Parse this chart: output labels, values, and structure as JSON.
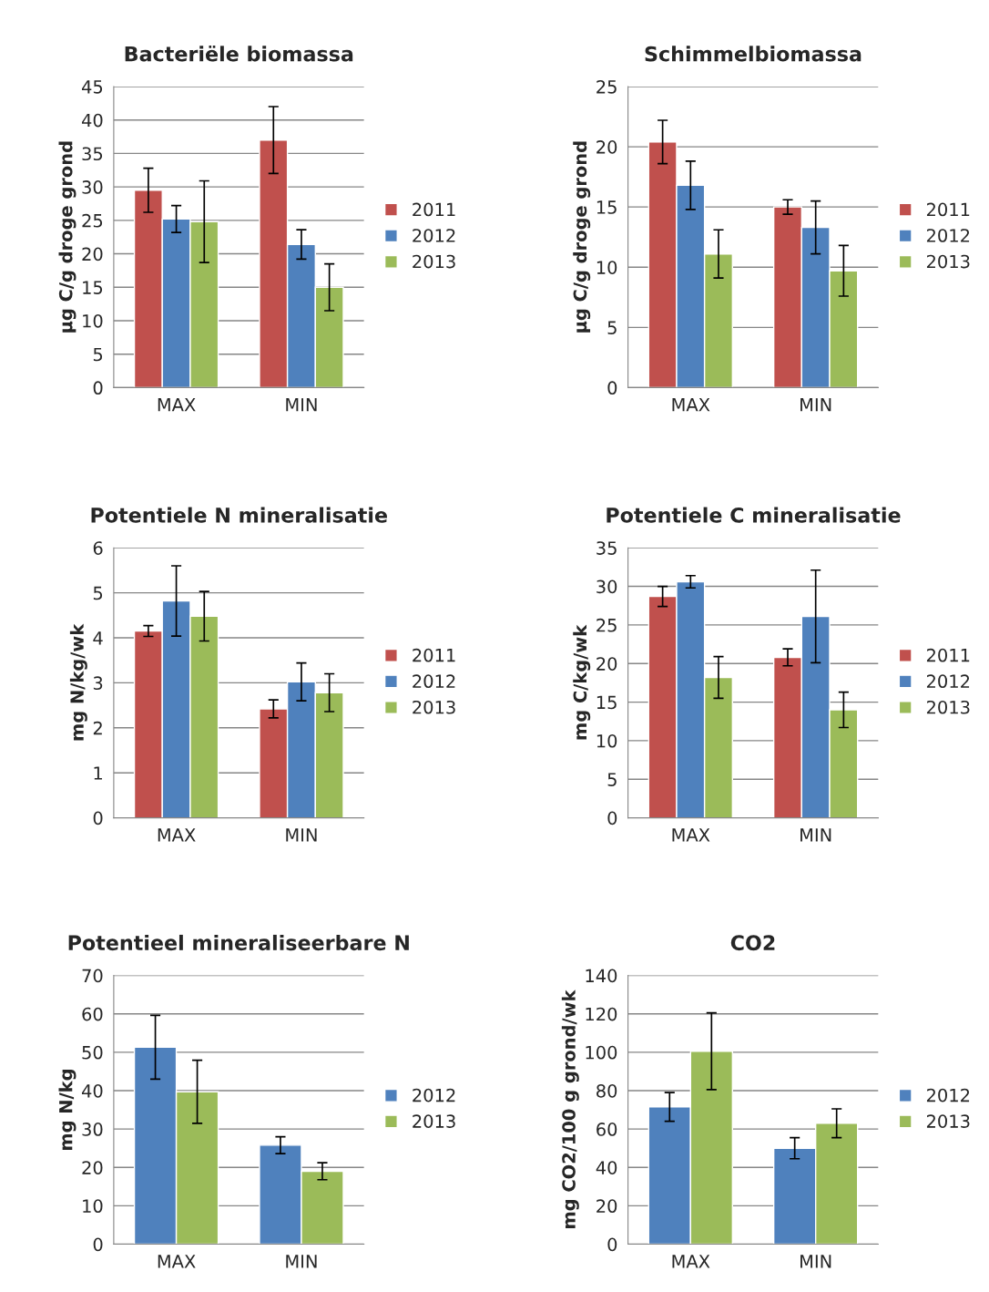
{
  "chart_data": [
    {
      "type": "bar",
      "title": "Bacteriële biomassa",
      "ylabel": "µg C/g droge grond",
      "categories": [
        "MAX",
        "MIN"
      ],
      "ylim": [
        0,
        45
      ],
      "yticks": [
        0,
        5,
        10,
        15,
        20,
        25,
        30,
        35,
        40,
        45
      ],
      "grid": "y",
      "legend": "right",
      "series": [
        {
          "name": "2011",
          "color": "#c0504d",
          "values": [
            29.5,
            37
          ],
          "errors": [
            3.3,
            5
          ]
        },
        {
          "name": "2012",
          "color": "#4f81bd",
          "values": [
            25.2,
            21.4
          ],
          "errors": [
            2,
            2.2
          ]
        },
        {
          "name": "2013",
          "color": "#9bbb59",
          "values": [
            24.8,
            15
          ],
          "errors": [
            6.1,
            3.5
          ]
        }
      ]
    },
    {
      "type": "bar",
      "title": "Schimmelbiomassa",
      "ylabel": "µg C/g droge grond",
      "categories": [
        "MAX",
        "MIN"
      ],
      "ylim": [
        0,
        25
      ],
      "yticks": [
        0,
        5,
        10,
        15,
        20,
        25
      ],
      "grid": "y",
      "legend": "right",
      "series": [
        {
          "name": "2011",
          "color": "#c0504d",
          "values": [
            20.4,
            15
          ],
          "errors": [
            1.8,
            0.6
          ]
        },
        {
          "name": "2012",
          "color": "#4f81bd",
          "values": [
            16.8,
            13.3
          ],
          "errors": [
            2,
            2.2
          ]
        },
        {
          "name": "2013",
          "color": "#9bbb59",
          "values": [
            11.1,
            9.7
          ],
          "errors": [
            2,
            2.1
          ]
        }
      ]
    },
    {
      "type": "bar",
      "title": "Potentiele N mineralisatie",
      "ylabel": "mg N/kg/wk",
      "categories": [
        "MAX",
        "MIN"
      ],
      "ylim": [
        0,
        6
      ],
      "yticks": [
        0,
        1,
        2,
        3,
        4,
        5,
        6
      ],
      "grid": "y",
      "legend": "right",
      "series": [
        {
          "name": "2011",
          "color": "#c0504d",
          "values": [
            4.15,
            2.42
          ],
          "errors": [
            0.12,
            0.2
          ]
        },
        {
          "name": "2012",
          "color": "#4f81bd",
          "values": [
            4.82,
            3.02
          ],
          "errors": [
            0.78,
            0.42
          ]
        },
        {
          "name": "2013",
          "color": "#9bbb59",
          "values": [
            4.48,
            2.78
          ],
          "errors": [
            0.55,
            0.42
          ]
        }
      ]
    },
    {
      "type": "bar",
      "title": "Potentiele C mineralisatie",
      "ylabel": "mg C/kg/wk",
      "categories": [
        "MAX",
        "MIN"
      ],
      "ylim": [
        0,
        35
      ],
      "yticks": [
        0,
        5,
        10,
        15,
        20,
        25,
        30,
        35
      ],
      "grid": "y",
      "legend": "right",
      "series": [
        {
          "name": "2011",
          "color": "#c0504d",
          "values": [
            28.7,
            20.8
          ],
          "errors": [
            1.3,
            1.1
          ]
        },
        {
          "name": "2012",
          "color": "#4f81bd",
          "values": [
            30.6,
            26.1
          ],
          "errors": [
            0.8,
            6
          ]
        },
        {
          "name": "2013",
          "color": "#9bbb59",
          "values": [
            18.2,
            14
          ],
          "errors": [
            2.7,
            2.3
          ]
        }
      ]
    },
    {
      "type": "bar",
      "title": "Potentieel mineraliseerbare N",
      "ylabel": "mg N/kg",
      "categories": [
        "MAX",
        "MIN"
      ],
      "ylim": [
        0,
        70
      ],
      "yticks": [
        0,
        10,
        20,
        30,
        40,
        50,
        60,
        70
      ],
      "grid": "y",
      "legend": "right",
      "series": [
        {
          "name": "2012",
          "color": "#4f81bd",
          "values": [
            51.3,
            25.8
          ],
          "errors": [
            8.3,
            2.2
          ]
        },
        {
          "name": "2013",
          "color": "#9bbb59",
          "values": [
            39.7,
            19
          ],
          "errors": [
            8.2,
            2.2
          ]
        }
      ]
    },
    {
      "type": "bar",
      "title": "CO2",
      "ylabel": "mg CO2/100 g grond/wk",
      "categories": [
        "MAX",
        "MIN"
      ],
      "ylim": [
        0,
        140
      ],
      "yticks": [
        0,
        20,
        40,
        60,
        80,
        100,
        120,
        140
      ],
      "grid": "y",
      "legend": "right",
      "series": [
        {
          "name": "2012",
          "color": "#4f81bd",
          "values": [
            71.5,
            50
          ],
          "errors": [
            7.5,
            5.5
          ]
        },
        {
          "name": "2013",
          "color": "#9bbb59",
          "values": [
            100.5,
            63
          ],
          "errors": [
            20,
            7.5
          ]
        }
      ]
    }
  ]
}
